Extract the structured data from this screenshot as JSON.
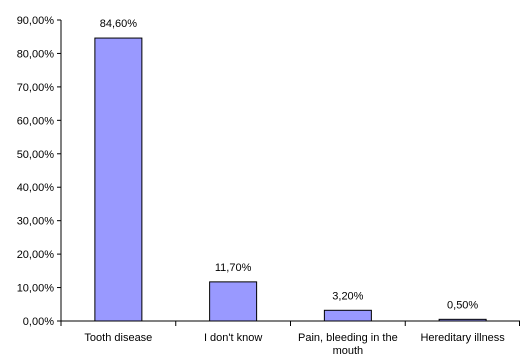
{
  "chart_data": {
    "type": "bar",
    "title": "",
    "xlabel": "",
    "ylabel": "",
    "categories": [
      "Tooth disease",
      "I don't know",
      "Pain, bleeding in the mouth",
      "Hereditary illness"
    ],
    "category_label_lines": [
      [
        "Tooth disease"
      ],
      [
        "I don't know"
      ],
      [
        "Pain, bleeding in the",
        "mouth"
      ],
      [
        "Hereditary illness"
      ]
    ],
    "values": [
      84.6,
      11.7,
      3.2,
      0.5
    ],
    "data_labels": [
      "84,60%",
      "11,70%",
      "3,20%",
      "0,50%"
    ],
    "ylim": [
      0,
      90
    ],
    "yticks": [
      0,
      10,
      20,
      30,
      40,
      50,
      60,
      70,
      80,
      90
    ],
    "ytick_labels": [
      "0,00%",
      "10,00%",
      "20,00%",
      "30,00%",
      "40,00%",
      "50,00%",
      "60,00%",
      "70,00%",
      "80,00%",
      "90,00%"
    ],
    "grid": false,
    "legend": "none",
    "colors": {
      "bar_fill": "#9999ff",
      "bar_stroke": "#000000",
      "axis": "#000000",
      "text": "#000000"
    }
  }
}
